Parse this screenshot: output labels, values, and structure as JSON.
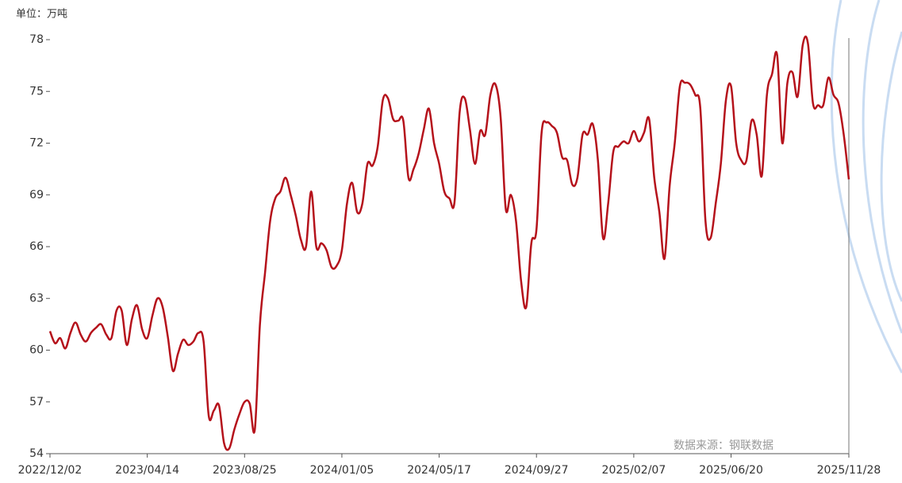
{
  "chart_data": {
    "type": "line",
    "unit_label": "单位：万吨",
    "source": "数据来源：钢联数据",
    "categories": [
      "2022/12/02",
      null,
      null,
      null,
      null,
      null,
      null,
      null,
      null,
      null,
      null,
      null,
      null,
      null,
      null,
      null,
      null,
      null,
      null,
      "2023/04/14",
      null,
      null,
      null,
      null,
      null,
      null,
      null,
      null,
      null,
      null,
      null,
      null,
      null,
      null,
      null,
      null,
      null,
      null,
      "2023/08/25",
      null,
      null,
      null,
      null,
      null,
      null,
      null,
      null,
      null,
      null,
      null,
      null,
      null,
      null,
      null,
      null,
      null,
      null,
      "2024/01/05",
      null,
      null,
      null,
      null,
      null,
      null,
      null,
      null,
      null,
      null,
      null,
      null,
      null,
      null,
      null,
      null,
      null,
      null,
      "2024/05/17",
      null,
      null,
      null,
      null,
      null,
      null,
      null,
      null,
      null,
      null,
      null,
      null,
      null,
      null,
      null,
      null,
      null,
      null,
      "2024/09/27",
      null,
      null,
      null,
      null,
      null,
      null,
      null,
      null,
      null,
      null,
      null,
      null,
      null,
      null,
      null,
      null,
      null,
      null,
      "2025/02/07",
      null,
      null,
      null,
      null,
      null,
      null,
      null,
      null,
      null,
      null,
      null,
      null,
      null,
      null,
      null,
      null,
      null,
      null,
      "2025/06/20",
      null,
      null,
      null,
      null,
      null,
      null,
      null,
      null,
      null,
      null,
      null,
      null,
      null,
      null,
      null,
      null,
      null,
      null,
      null,
      null,
      null,
      null,
      "2025/11/28"
    ],
    "values": [
      61.1,
      60.4,
      60.7,
      60.1,
      61.0,
      61.6,
      60.9,
      60.5,
      61.0,
      61.3,
      61.5,
      60.9,
      60.7,
      62.3,
      62.3,
      60.3,
      61.8,
      62.6,
      61.2,
      60.7,
      62.0,
      63.0,
      62.5,
      60.8,
      58.8,
      59.8,
      60.6,
      60.3,
      60.5,
      61.0,
      60.5,
      56.2,
      56.5,
      56.8,
      54.6,
      54.3,
      55.4,
      56.3,
      57.0,
      56.9,
      55.4,
      61.5,
      64.5,
      67.5,
      68.8,
      69.2,
      70.0,
      69.0,
      67.8,
      66.4,
      66.0,
      69.2,
      66.0,
      66.2,
      65.8,
      64.8,
      64.9,
      65.8,
      68.5,
      69.7,
      68.0,
      68.5,
      70.8,
      70.7,
      71.8,
      74.5,
      74.6,
      73.4,
      73.3,
      73.3,
      70.0,
      70.5,
      71.4,
      72.8,
      74.0,
      72.0,
      70.8,
      69.2,
      68.8,
      68.6,
      73.8,
      74.6,
      72.8,
      70.8,
      72.7,
      72.5,
      74.8,
      75.4,
      73.5,
      68.2,
      69.0,
      67.5,
      64.0,
      62.5,
      66.2,
      67.0,
      72.6,
      73.2,
      73.0,
      72.6,
      71.2,
      71.0,
      69.6,
      70.0,
      72.5,
      72.5,
      73.1,
      71.0,
      66.5,
      68.5,
      71.5,
      71.8,
      72.1,
      72.0,
      72.7,
      72.1,
      72.6,
      73.4,
      70.0,
      68.0,
      65.3,
      69.5,
      72.0,
      75.3,
      75.5,
      75.4,
      74.8,
      74.0,
      67.5,
      66.5,
      68.5,
      70.8,
      74.5,
      75.3,
      72.0,
      71.0,
      71.0,
      73.3,
      72.5,
      70.1,
      74.8,
      76.0,
      77.1,
      72.0,
      75.5,
      76.1,
      74.7,
      77.7,
      77.8,
      74.3,
      74.2,
      74.2,
      75.8,
      74.8,
      74.3,
      72.5,
      69.9
    ],
    "color": "#b5121b",
    "ylim": [
      54,
      78
    ],
    "yticks": [
      54,
      57,
      60,
      63,
      66,
      69,
      72,
      75,
      78
    ],
    "grid": false
  }
}
